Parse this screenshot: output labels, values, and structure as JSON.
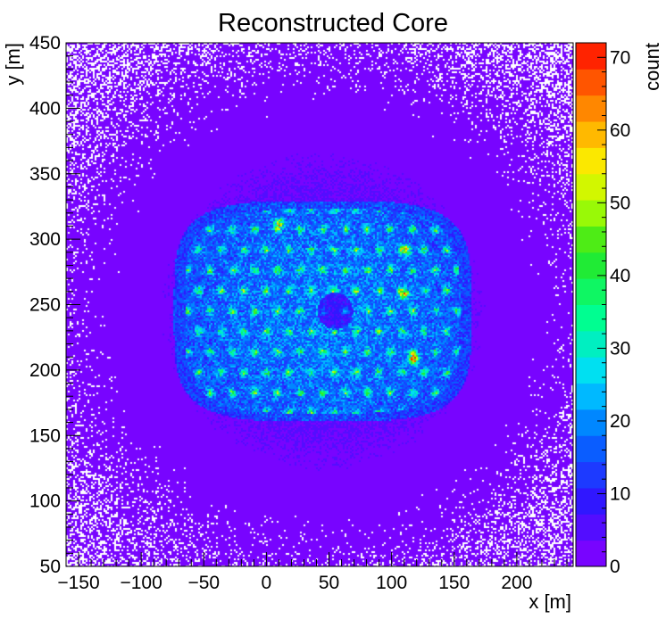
{
  "chart_data": {
    "type": "heatmap",
    "title": "Reconstructed Core",
    "xlabel": "x [m]",
    "ylabel": "y [m]",
    "zlabel": "count",
    "xlim": [
      -160,
      245
    ],
    "ylim": [
      50,
      450
    ],
    "zlim": [
      0,
      72
    ],
    "xticks": [
      -150,
      -100,
      -50,
      0,
      50,
      100,
      150,
      200
    ],
    "yticks": [
      50,
      100,
      150,
      200,
      250,
      300,
      350,
      400,
      450
    ],
    "zticks": [
      0,
      10,
      20,
      30,
      40,
      50,
      60,
      70
    ],
    "distribution": {
      "array_center": [
        45,
        245
      ],
      "array_half_width": [
        110,
        78
      ],
      "array_level": 12,
      "hex_spacing": 18,
      "hex_peak": 24,
      "background_level": 3,
      "central_hole": [
        55,
        245,
        14
      ],
      "hotspots": [
        {
          "x": 118,
          "y": 208,
          "value": 45
        },
        {
          "x": 110,
          "y": 258,
          "value": 42
        },
        {
          "x": 112,
          "y": 292,
          "value": 32
        },
        {
          "x": 10,
          "y": 312,
          "value": 30
        }
      ]
    }
  }
}
